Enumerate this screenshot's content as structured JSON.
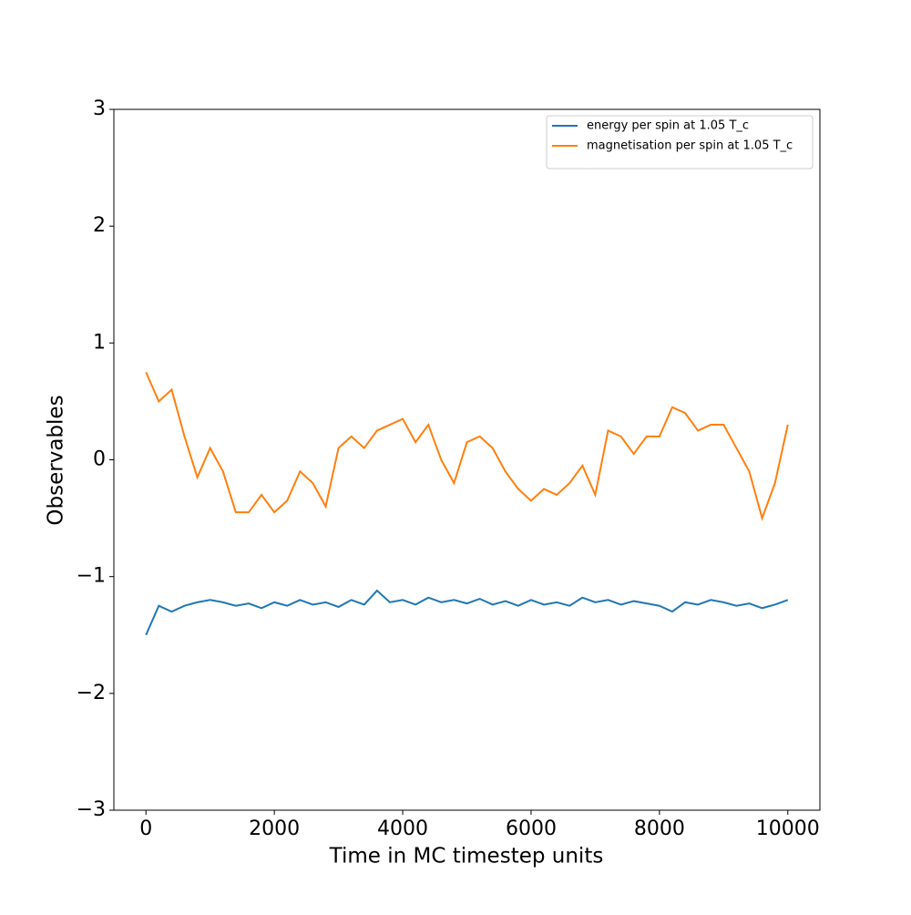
{
  "chart_data": {
    "type": "line",
    "x_label": "Time in MC timestep units",
    "y_label": "Observables",
    "x": [
      0,
      200,
      400,
      600,
      800,
      1000,
      1200,
      1400,
      1600,
      1800,
      2000,
      2200,
      2400,
      2600,
      2800,
      3000,
      3200,
      3400,
      3600,
      3800,
      4000,
      4200,
      4400,
      4600,
      4800,
      5000,
      5200,
      5400,
      5600,
      5800,
      6000,
      6200,
      6400,
      6600,
      6800,
      7000,
      7200,
      7400,
      7600,
      7800,
      8000,
      8200,
      8400,
      8600,
      8800,
      9000,
      9200,
      9400,
      9600,
      9800,
      10000
    ],
    "series": [
      {
        "name": "energy per spin at 1.05 T_c",
        "color": "#1f77b4",
        "values": [
          -1.5,
          -1.25,
          -1.3,
          -1.25,
          -1.22,
          -1.2,
          -1.22,
          -1.25,
          -1.23,
          -1.27,
          -1.22,
          -1.25,
          -1.2,
          -1.24,
          -1.22,
          -1.26,
          -1.2,
          -1.24,
          -1.12,
          -1.22,
          -1.2,
          -1.24,
          -1.18,
          -1.22,
          -1.2,
          -1.23,
          -1.19,
          -1.24,
          -1.21,
          -1.25,
          -1.2,
          -1.24,
          -1.22,
          -1.25,
          -1.18,
          -1.22,
          -1.2,
          -1.24,
          -1.21,
          -1.23,
          -1.25,
          -1.3,
          -1.22,
          -1.24,
          -1.2,
          -1.22,
          -1.25,
          -1.23,
          -1.27,
          -1.24,
          -1.2
        ]
      },
      {
        "name": "magnetisation per spin at 1.05 T_c",
        "color": "#ff7f0e",
        "values": [
          0.75,
          0.5,
          0.6,
          0.2,
          -0.15,
          0.1,
          -0.1,
          -0.45,
          -0.45,
          -0.3,
          -0.45,
          -0.35,
          -0.1,
          -0.2,
          -0.4,
          0.1,
          0.2,
          0.1,
          0.25,
          0.3,
          0.35,
          0.15,
          0.3,
          0.0,
          -0.2,
          0.15,
          0.2,
          0.1,
          -0.1,
          -0.25,
          -0.35,
          -0.25,
          -0.3,
          -0.2,
          -0.05,
          -0.3,
          0.25,
          0.2,
          0.05,
          0.2,
          0.2,
          0.45,
          0.4,
          0.25,
          0.3,
          0.3,
          0.1,
          -0.1,
          -0.5,
          -0.2,
          0.3
        ]
      }
    ],
    "xlim": [
      -500,
      10500
    ],
    "ylim": [
      -3,
      3
    ],
    "xticks": [
      0,
      2000,
      4000,
      6000,
      8000,
      10000
    ],
    "yticks": [
      {
        "value": -3,
        "label": "−3"
      },
      {
        "value": -2,
        "label": "−2"
      },
      {
        "value": -1,
        "label": "−1"
      },
      0,
      1,
      2,
      3
    ],
    "legend": "upper right",
    "grid": false
  }
}
